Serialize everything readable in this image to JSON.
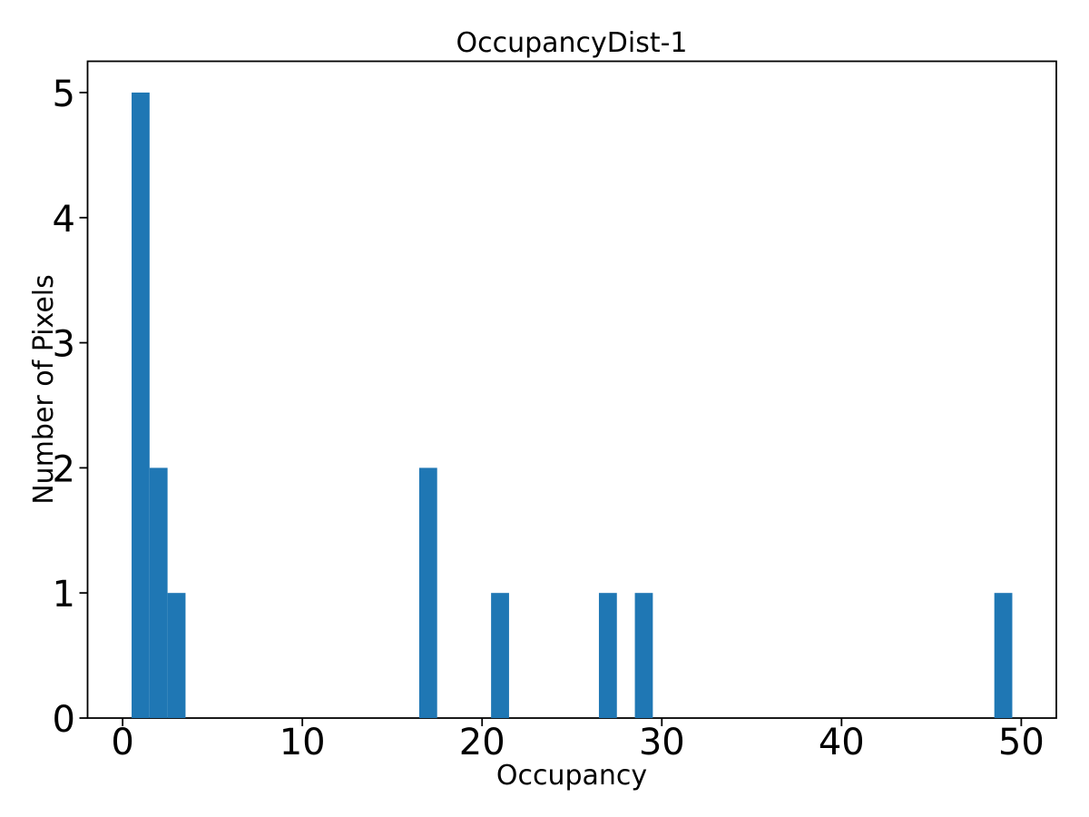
{
  "chart_data": {
    "type": "bar",
    "subtype": "histogram",
    "title": "OccupancyDist-1",
    "xlabel": "Occupancy",
    "ylabel": "Number of Pixels",
    "bar_color": "#1f77b4",
    "axis_color": "#000000",
    "background_color": "#ffffff",
    "xlim": [
      -1.95,
      51.95
    ],
    "ylim": [
      0,
      5.25
    ],
    "xticks": [
      0,
      10,
      20,
      30,
      40,
      50
    ],
    "yticks": [
      0,
      1,
      2,
      3,
      4,
      5
    ],
    "grid": false,
    "legend": false,
    "bin_width": 1,
    "bars": [
      {
        "bin_start": 0.5,
        "bin_end": 1.5,
        "center": 1,
        "count": 5
      },
      {
        "bin_start": 1.5,
        "bin_end": 2.5,
        "center": 2,
        "count": 2
      },
      {
        "bin_start": 2.5,
        "bin_end": 3.5,
        "center": 3,
        "count": 1
      },
      {
        "bin_start": 16.5,
        "bin_end": 17.5,
        "center": 17,
        "count": 2
      },
      {
        "bin_start": 20.5,
        "bin_end": 21.5,
        "center": 21,
        "count": 1
      },
      {
        "bin_start": 26.5,
        "bin_end": 27.5,
        "center": 27,
        "count": 1
      },
      {
        "bin_start": 28.5,
        "bin_end": 29.5,
        "center": 29,
        "count": 1
      },
      {
        "bin_start": 48.5,
        "bin_end": 49.5,
        "center": 49,
        "count": 1
      }
    ]
  }
}
